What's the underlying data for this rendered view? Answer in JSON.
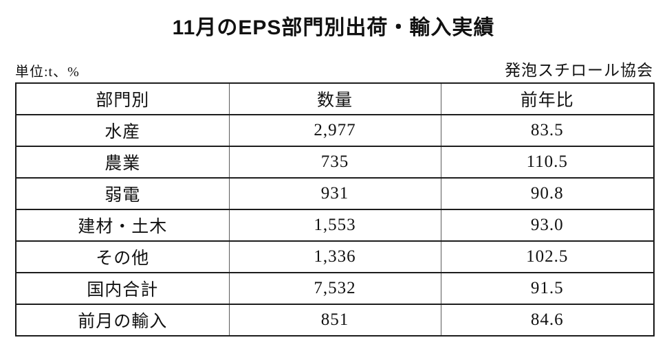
{
  "page": {
    "title": "11月のEPS部門別出荷・輸入実績",
    "unit_note": "単位:t、%",
    "source": "発泡スチロール協会"
  },
  "table": {
    "headers": [
      "部門別",
      "数量",
      "前年比"
    ],
    "rows": [
      {
        "category": "水産",
        "quantity": "2,977",
        "yoy": "83.5"
      },
      {
        "category": "農業",
        "quantity": "735",
        "yoy": "110.5"
      },
      {
        "category": "弱電",
        "quantity": "931",
        "yoy": "90.8"
      },
      {
        "category": "建材・土木",
        "quantity": "1,553",
        "yoy": "93.0"
      },
      {
        "category": "その他",
        "quantity": "1,336",
        "yoy": "102.5"
      },
      {
        "category": "国内合計",
        "quantity": "7,532",
        "yoy": "91.5"
      },
      {
        "category": "前月の輸入",
        "quantity": "851",
        "yoy": "84.6"
      }
    ]
  },
  "chart_data": {
    "type": "table",
    "title": "11月のEPS部門別出荷・輸入実績",
    "columns": [
      "部門別",
      "数量",
      "前年比"
    ],
    "rows": [
      [
        "水産",
        2977,
        83.5
      ],
      [
        "農業",
        735,
        110.5
      ],
      [
        "弱電",
        931,
        90.8
      ],
      [
        "建材・土木",
        1553,
        93.0
      ],
      [
        "その他",
        1336,
        102.5
      ],
      [
        "国内合計",
        7532,
        91.5
      ],
      [
        "前月の輸入",
        851,
        84.6
      ]
    ]
  }
}
